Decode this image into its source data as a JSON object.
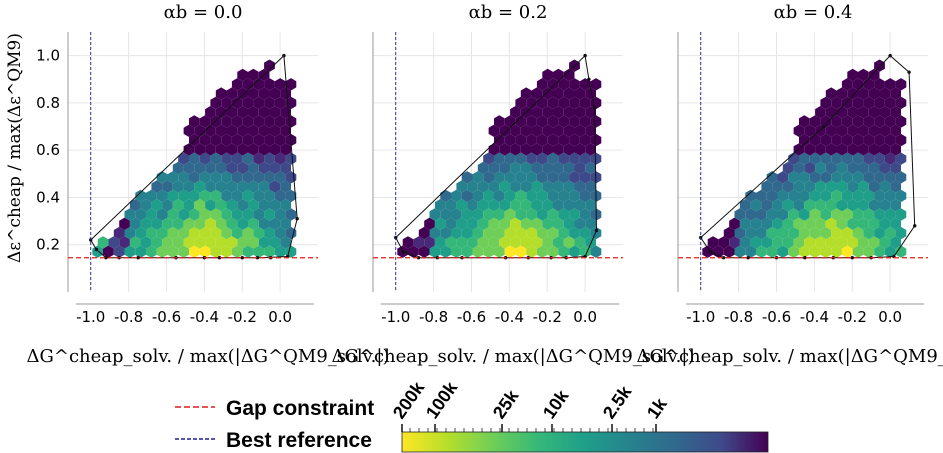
{
  "figure": {
    "panels": [
      {
        "title": "αb = 0.0"
      },
      {
        "title": "αb = 0.2"
      },
      {
        "title": "αb = 0.4"
      }
    ],
    "ylabel": "Δε^cheap / max(Δε^QM9)",
    "xlabel": "ΔG^cheap_solv. / max(|ΔG^QM9_solv.|)",
    "legend": [
      {
        "label": "Gap constraint",
        "color": "#e31a1c",
        "style": "dashed"
      },
      {
        "label": "Best reference",
        "color": "#1f1f8f",
        "style": "dashed"
      }
    ],
    "colorbar": {
      "ticks": [
        "200k",
        "100k",
        "25k",
        "10k",
        "2.5k",
        "1k"
      ],
      "colormap": "viridis (reversed: yellow = high count)"
    }
  },
  "chart_data": [
    {
      "type": "heatmap",
      "subtype": "hexbin",
      "title": "αb = 0.0",
      "xlabel": "ΔG^cheap_solv. / max(|ΔG^QM9_solv.|)",
      "ylabel": "Δε^cheap / max(Δε^QM9)",
      "xlim": [
        -1.12,
        0.2
      ],
      "ylim": [
        0.0,
        1.1
      ],
      "xticks": [
        "-1.0",
        "-0.8",
        "-0.6",
        "-0.4",
        "-0.2",
        "0.0"
      ],
      "yticks": [
        "0.2",
        "0.4",
        "0.6",
        "0.8",
        "1.0"
      ],
      "grid": true,
      "gap_constraint_y": 0.145,
      "best_reference_x": -1.0,
      "hull": [
        [
          -1.0,
          0.22
        ],
        [
          -0.97,
          0.18
        ],
        [
          -0.92,
          0.145
        ],
        [
          -0.6,
          0.145
        ],
        [
          -0.4,
          0.145
        ],
        [
          -0.2,
          0.145
        ],
        [
          -0.1,
          0.145
        ],
        [
          0.04,
          0.15
        ],
        [
          0.09,
          0.31
        ],
        [
          0.02,
          1.0
        ],
        [
          -1.0,
          0.22
        ]
      ],
      "hull_points": [
        [
          -1.0,
          0.22
        ],
        [
          -0.97,
          0.18
        ],
        [
          -0.92,
          0.145
        ],
        [
          -0.85,
          0.145
        ],
        [
          -0.75,
          0.145
        ],
        [
          -0.55,
          0.145
        ],
        [
          -0.4,
          0.145
        ],
        [
          -0.32,
          0.145
        ],
        [
          -0.2,
          0.145
        ],
        [
          -0.12,
          0.145
        ],
        [
          -0.05,
          0.145
        ],
        [
          0.04,
          0.15
        ],
        [
          0.09,
          0.31
        ],
        [
          0.02,
          1.0
        ]
      ]
    },
    {
      "type": "heatmap",
      "subtype": "hexbin",
      "title": "αb = 0.2",
      "xlabel": "ΔG^cheap_solv. / max(|ΔG^QM9_solv.|)",
      "xlim": [
        -1.12,
        0.2
      ],
      "ylim": [
        0.0,
        1.1
      ],
      "xticks": [
        "-1.0",
        "-0.8",
        "-0.6",
        "-0.4",
        "-0.2",
        "0.0"
      ],
      "grid": true,
      "gap_constraint_y": 0.145,
      "best_reference_x": -1.0,
      "hull": [
        [
          -1.0,
          0.23
        ],
        [
          -0.96,
          0.17
        ],
        [
          -0.88,
          0.145
        ],
        [
          -0.6,
          0.145
        ],
        [
          -0.3,
          0.145
        ],
        [
          -0.1,
          0.145
        ],
        [
          0.0,
          0.15
        ],
        [
          0.06,
          0.26
        ],
        [
          0.05,
          0.78
        ],
        [
          0.02,
          0.9
        ],
        [
          0.0,
          1.0
        ],
        [
          -1.0,
          0.23
        ]
      ],
      "hull_points": [
        [
          -1.0,
          0.23
        ],
        [
          -0.96,
          0.17
        ],
        [
          -0.88,
          0.145
        ],
        [
          -0.78,
          0.145
        ],
        [
          -0.65,
          0.145
        ],
        [
          -0.42,
          0.145
        ],
        [
          -0.3,
          0.145
        ],
        [
          -0.18,
          0.145
        ],
        [
          -0.1,
          0.145
        ],
        [
          0.0,
          0.15
        ],
        [
          0.06,
          0.26
        ],
        [
          0.05,
          0.78
        ],
        [
          0.02,
          0.9
        ],
        [
          0.0,
          1.0
        ]
      ]
    },
    {
      "type": "heatmap",
      "subtype": "hexbin",
      "title": "αb = 0.4",
      "xlabel": "ΔG^cheap_solv. / max(|ΔG^QM9_solv.|)",
      "xlim": [
        -1.12,
        0.2
      ],
      "ylim": [
        0.0,
        1.1
      ],
      "xticks": [
        "-1.0",
        "-0.8",
        "-0.6",
        "-0.4",
        "-0.2",
        "0.0"
      ],
      "grid": true,
      "gap_constraint_y": 0.145,
      "best_reference_x": -1.0,
      "hull": [
        [
          -1.0,
          0.23
        ],
        [
          -0.95,
          0.17
        ],
        [
          -0.88,
          0.145
        ],
        [
          -0.6,
          0.145
        ],
        [
          -0.3,
          0.145
        ],
        [
          -0.1,
          0.145
        ],
        [
          0.02,
          0.15
        ],
        [
          0.13,
          0.28
        ],
        [
          0.1,
          0.93
        ],
        [
          0.0,
          1.0
        ],
        [
          -0.35,
          0.7
        ],
        [
          -1.0,
          0.23
        ]
      ],
      "hull_points": [
        [
          -1.0,
          0.23
        ],
        [
          -0.95,
          0.17
        ],
        [
          -0.88,
          0.145
        ],
        [
          -0.75,
          0.145
        ],
        [
          -0.6,
          0.145
        ],
        [
          -0.45,
          0.145
        ],
        [
          -0.3,
          0.145
        ],
        [
          -0.2,
          0.145
        ],
        [
          -0.1,
          0.145
        ],
        [
          0.02,
          0.15
        ],
        [
          0.13,
          0.28
        ],
        [
          0.1,
          0.93
        ],
        [
          0.0,
          1.0
        ],
        [
          -0.35,
          0.7
        ]
      ]
    }
  ]
}
